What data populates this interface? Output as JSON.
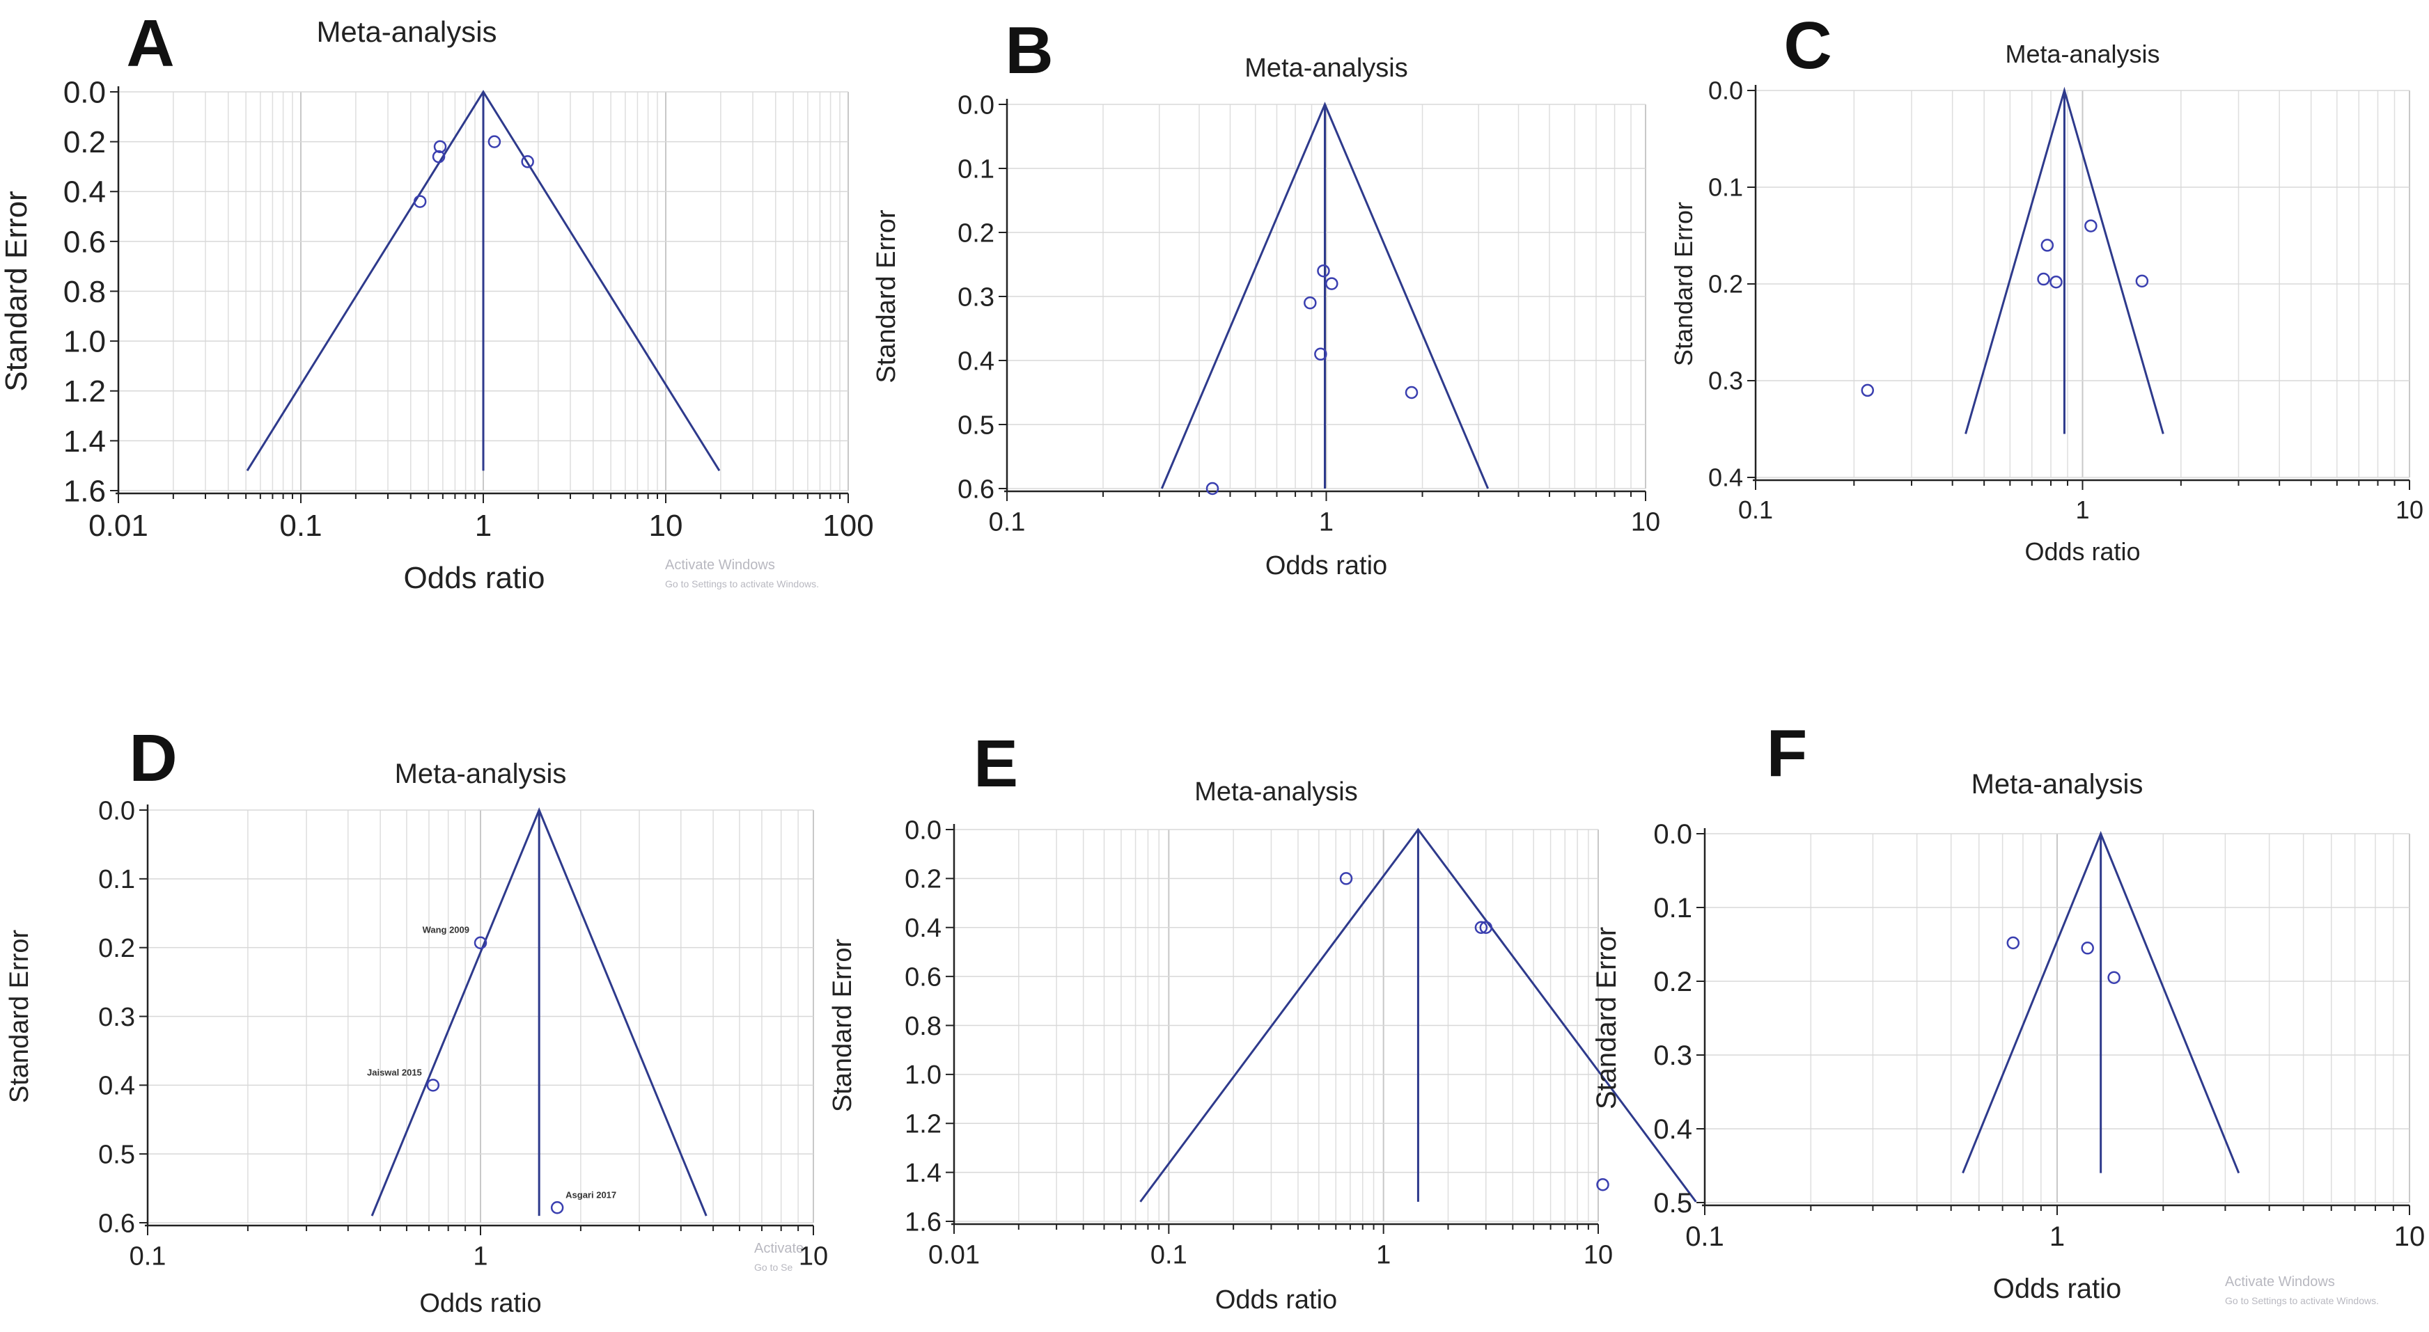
{
  "chart_data": [
    {
      "letter": "A",
      "type": "scatter",
      "title": "Meta-analysis",
      "xlabel": "Odds ratio",
      "ylabel": "Standard Error",
      "xscale": "log",
      "xlim": [
        0.01,
        100
      ],
      "ylim": [
        0,
        1.6
      ],
      "xticks": [
        0.01,
        0.1,
        1,
        10,
        100
      ],
      "xtick_labels": [
        "0.01",
        "0.1",
        "1",
        "10",
        "100"
      ],
      "yticks": [
        0,
        0.2,
        0.4,
        0.6,
        0.8,
        1.0,
        1.2,
        1.4,
        1.6
      ],
      "ytick_labels": [
        "0.0",
        "0.2",
        "0.4",
        "0.6",
        "0.8",
        "1.0",
        "1.2",
        "1.4",
        "1.6"
      ],
      "pooled_or": 1.0,
      "funnel_bottom_se": 1.52,
      "points": [
        {
          "x": 0.58,
          "y": 0.22
        },
        {
          "x": 0.57,
          "y": 0.26
        },
        {
          "x": 1.15,
          "y": 0.2
        },
        {
          "x": 1.75,
          "y": 0.28
        },
        {
          "x": 0.45,
          "y": 0.44
        }
      ],
      "watermark": [
        "Activate Windows",
        "Go to Settings to activate Windows."
      ]
    },
    {
      "letter": "B",
      "type": "scatter",
      "title": "Meta-analysis",
      "xlabel": "Odds ratio",
      "ylabel": "Standard Error",
      "xscale": "log",
      "xlim": [
        0.1,
        10
      ],
      "ylim": [
        0,
        0.6
      ],
      "xticks": [
        0.1,
        1,
        10
      ],
      "xtick_labels": [
        "0.1",
        "1",
        "10"
      ],
      "yticks": [
        0,
        0.1,
        0.2,
        0.3,
        0.4,
        0.5,
        0.6
      ],
      "ytick_labels": [
        "0.0",
        "0.1",
        "0.2",
        "0.3",
        "0.4",
        "0.5",
        "0.6"
      ],
      "pooled_or": 0.99,
      "funnel_bottom_se": 0.6,
      "points": [
        {
          "x": 0.98,
          "y": 0.26
        },
        {
          "x": 1.04,
          "y": 0.28
        },
        {
          "x": 0.89,
          "y": 0.31
        },
        {
          "x": 0.96,
          "y": 0.39
        },
        {
          "x": 1.85,
          "y": 0.45
        },
        {
          "x": 0.44,
          "y": 0.6
        }
      ],
      "watermark": []
    },
    {
      "letter": "C",
      "type": "scatter",
      "title": "Meta-analysis",
      "xlabel": "Odds ratio",
      "ylabel": "Standard Error",
      "xscale": "log",
      "xlim": [
        0.1,
        10
      ],
      "ylim": [
        0,
        0.4
      ],
      "xticks": [
        0.1,
        1,
        10
      ],
      "xtick_labels": [
        "0.1",
        "1",
        "10"
      ],
      "yticks": [
        0,
        0.1,
        0.2,
        0.3,
        0.4
      ],
      "ytick_labels": [
        "0.0",
        "0.1",
        "0.2",
        "0.3",
        "0.4"
      ],
      "pooled_or": 0.88,
      "funnel_bottom_se": 0.355,
      "points": [
        {
          "x": 1.06,
          "y": 0.14
        },
        {
          "x": 0.78,
          "y": 0.16
        },
        {
          "x": 0.76,
          "y": 0.195
        },
        {
          "x": 0.83,
          "y": 0.198
        },
        {
          "x": 1.52,
          "y": 0.197
        },
        {
          "x": 0.22,
          "y": 0.31
        }
      ],
      "watermark": []
    },
    {
      "letter": "D",
      "type": "scatter",
      "title": "Meta-analysis",
      "xlabel": "Odds ratio",
      "ylabel": "Standard Error",
      "xscale": "log",
      "xlim": [
        0.1,
        10
      ],
      "ylim": [
        0,
        0.6
      ],
      "xticks": [
        0.1,
        1,
        10
      ],
      "xtick_labels": [
        "0.1",
        "1",
        "10"
      ],
      "yticks": [
        0,
        0.1,
        0.2,
        0.3,
        0.4,
        0.5,
        0.6
      ],
      "ytick_labels": [
        "0.0",
        "0.1",
        "0.2",
        "0.3",
        "0.4",
        "0.5",
        "0.6"
      ],
      "pooled_or": 1.5,
      "funnel_bottom_se": 0.59,
      "points": [
        {
          "x": 1.0,
          "y": 0.193,
          "label": "Wang 2009"
        },
        {
          "x": 0.72,
          "y": 0.4,
          "label": "Jaiswal 2015"
        },
        {
          "x": 1.7,
          "y": 0.578,
          "label": "Asgari 2017"
        }
      ],
      "watermark": [
        "Activate",
        "Go to Se"
      ]
    },
    {
      "letter": "E",
      "type": "scatter",
      "title": "Meta-analysis",
      "xlabel": "Odds ratio",
      "ylabel": "Standard Error",
      "xscale": "log",
      "xlim": [
        0.01,
        10
      ],
      "ylim": [
        0,
        1.6
      ],
      "xticks": [
        0.01,
        0.1,
        1,
        10
      ],
      "xtick_labels": [
        "0.01",
        "0.1",
        "1",
        "10"
      ],
      "yticks": [
        0,
        0.2,
        0.4,
        0.6,
        0.8,
        1.0,
        1.2,
        1.4,
        1.6
      ],
      "ytick_labels": [
        "0.0",
        "0.2",
        "0.4",
        "0.6",
        "0.8",
        "1.0",
        "1.2",
        "1.4",
        "1.6"
      ],
      "pooled_or": 1.45,
      "funnel_bottom_se": 1.52,
      "points": [
        {
          "x": 0.67,
          "y": 0.2
        },
        {
          "x": 2.85,
          "y": 0.4
        },
        {
          "x": 3.0,
          "y": 0.4
        },
        {
          "x": 10.5,
          "y": 1.45
        }
      ],
      "watermark": []
    },
    {
      "letter": "F",
      "type": "scatter",
      "title": "Meta-analysis",
      "xlabel": "Odds ratio",
      "ylabel": "Standard Error",
      "xscale": "log",
      "xlim": [
        0.1,
        10
      ],
      "ylim": [
        0,
        0.5
      ],
      "xticks": [
        0.1,
        1,
        10
      ],
      "xtick_labels": [
        "0.1",
        "1",
        "10"
      ],
      "yticks": [
        0,
        0.1,
        0.2,
        0.3,
        0.4,
        0.5
      ],
      "ytick_labels": [
        "0.0",
        "0.1",
        "0.2",
        "0.3",
        "0.4",
        "0.5"
      ],
      "pooled_or": 1.33,
      "funnel_bottom_se": 0.46,
      "points": [
        {
          "x": 0.75,
          "y": 0.148
        },
        {
          "x": 1.22,
          "y": 0.155
        },
        {
          "x": 1.45,
          "y": 0.195
        }
      ],
      "watermark": [
        "Activate Windows",
        "Go to Settings to activate Windows."
      ]
    }
  ]
}
